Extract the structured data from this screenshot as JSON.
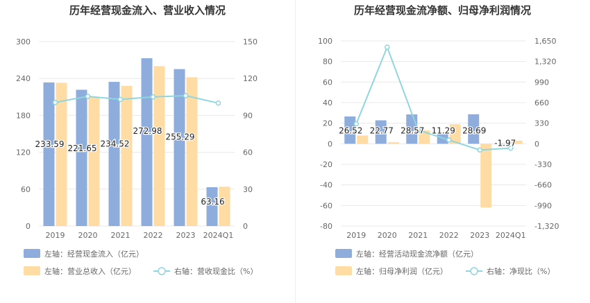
{
  "colors": {
    "bar_primary": "#8eaddd",
    "bar_secondary": "#ffdca3",
    "line": "#8fd6de",
    "axis_text": "#666666",
    "grid": "#e8e8e8",
    "title": "#333333"
  },
  "chart_data": [
    {
      "type": "bar",
      "title": "历年经营现金流入、营业收入情况",
      "categories": [
        "2019",
        "2020",
        "2021",
        "2022",
        "2023",
        "2024Q1"
      ],
      "left_axis": {
        "ylim": [
          0,
          300
        ],
        "ticks": [
          "0",
          "60",
          "120",
          "180",
          "240",
          "300"
        ]
      },
      "right_axis": {
        "ylim": [
          0,
          150
        ],
        "ticks": [
          "0",
          "30",
          "60",
          "90",
          "120",
          "150"
        ]
      },
      "series": [
        {
          "name": "左轴：经营现金流入（亿元）",
          "kind": "bar",
          "axis": "left",
          "values": [
            233.59,
            221.65,
            234.52,
            272.98,
            255.29,
            63.16
          ],
          "labels": [
            "233.59",
            "221.65",
            "234.52",
            "272.98",
            "255.29",
            "63.16"
          ]
        },
        {
          "name": "左轴：营业总收入（亿元）",
          "kind": "bar",
          "axis": "left",
          "values": [
            233,
            210,
            228,
            260,
            242,
            64
          ]
        },
        {
          "name": "右轴：营收现金比（%）",
          "kind": "line",
          "axis": "right",
          "values": [
            100.5,
            105.5,
            103,
            105,
            106,
            100
          ]
        }
      ],
      "legend": [
        "左轴：经营现金流入（亿元）",
        "左轴：营业总收入（亿元）",
        "右轴：营收现金比（%）"
      ]
    },
    {
      "type": "bar",
      "title": "历年经营现金流净额、归母净利润情况",
      "categories": [
        "2019",
        "2020",
        "2021",
        "2022",
        "2023",
        "2024Q1"
      ],
      "left_axis": {
        "ylim": [
          -80,
          100
        ],
        "ticks": [
          "-80",
          "-60",
          "-40",
          "-20",
          "0",
          "20",
          "40",
          "60",
          "80",
          "100"
        ]
      },
      "right_axis": {
        "ylim": [
          -1320,
          1650
        ],
        "ticks": [
          "-1,320",
          "-990",
          "-660",
          "-330",
          "0",
          "330",
          "660",
          "990",
          "1,320",
          "1,650"
        ]
      },
      "series": [
        {
          "name": "左轴：经营活动现金流净额（亿元）",
          "kind": "bar",
          "axis": "left",
          "values": [
            26.52,
            22.77,
            28.57,
            11.29,
            28.69,
            -1.97
          ],
          "labels": [
            "26.52",
            "22.77",
            "28.57",
            "11.29",
            "28.69",
            "-1.97"
          ]
        },
        {
          "name": "左轴：归母净利润（亿元）",
          "kind": "bar",
          "axis": "left",
          "values": [
            8,
            1.5,
            13,
            19,
            -62,
            3
          ]
        },
        {
          "name": "右轴：净现比（%）",
          "kind": "line",
          "axis": "right",
          "values": [
            320,
            1550,
            220,
            60,
            -100,
            -70
          ]
        }
      ],
      "legend": [
        "左轴：经营活动现金流净额（亿元）",
        "左轴：归母净利润（亿元）",
        "右轴：净现比（%）"
      ]
    }
  ]
}
